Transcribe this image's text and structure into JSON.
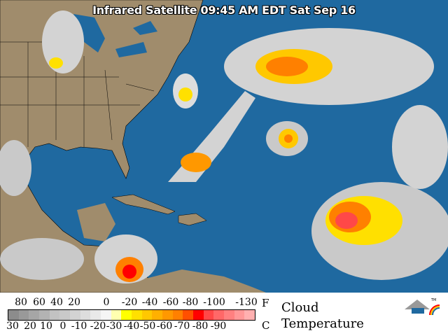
{
  "title": "Infrared Satellite 09:45 AM EDT Sat Sep 16",
  "colors": {
    "ocean": "#1f69a0",
    "land": "#a08c6c",
    "borders": "#000000"
  },
  "legend": {
    "fahrenheit_ticks": [
      "80",
      "60",
      "40",
      "20",
      "0",
      "-20",
      "-40",
      "-60",
      "-80",
      "-100",
      "-130"
    ],
    "celsius_ticks": [
      "30",
      "20",
      "10",
      "0",
      "-10",
      "-20",
      "-30",
      "-40",
      "-50",
      "-60",
      "-70",
      "-80",
      "-90"
    ],
    "fahrenheit_unit": "F",
    "celsius_unit": "C",
    "label_line1": "Cloud",
    "label_line2": "Temperature",
    "color_scale": [
      "#8c8c8c",
      "#999999",
      "#a6a6a6",
      "#b3b3b3",
      "#c2c2c2",
      "#c9c9c9",
      "#d3d3d3",
      "#dddddd",
      "#e9e9e9",
      "#f5f5f5",
      "#ffffb0",
      "#ffff00",
      "#ffe000",
      "#ffc800",
      "#ffb000",
      "#ff9800",
      "#ff8000",
      "#ff5000",
      "#ff0000",
      "#ff4848",
      "#ff6868",
      "#ff8080",
      "#ff9898",
      "#ffb0b0"
    ],
    "logo_mark": "TM"
  }
}
